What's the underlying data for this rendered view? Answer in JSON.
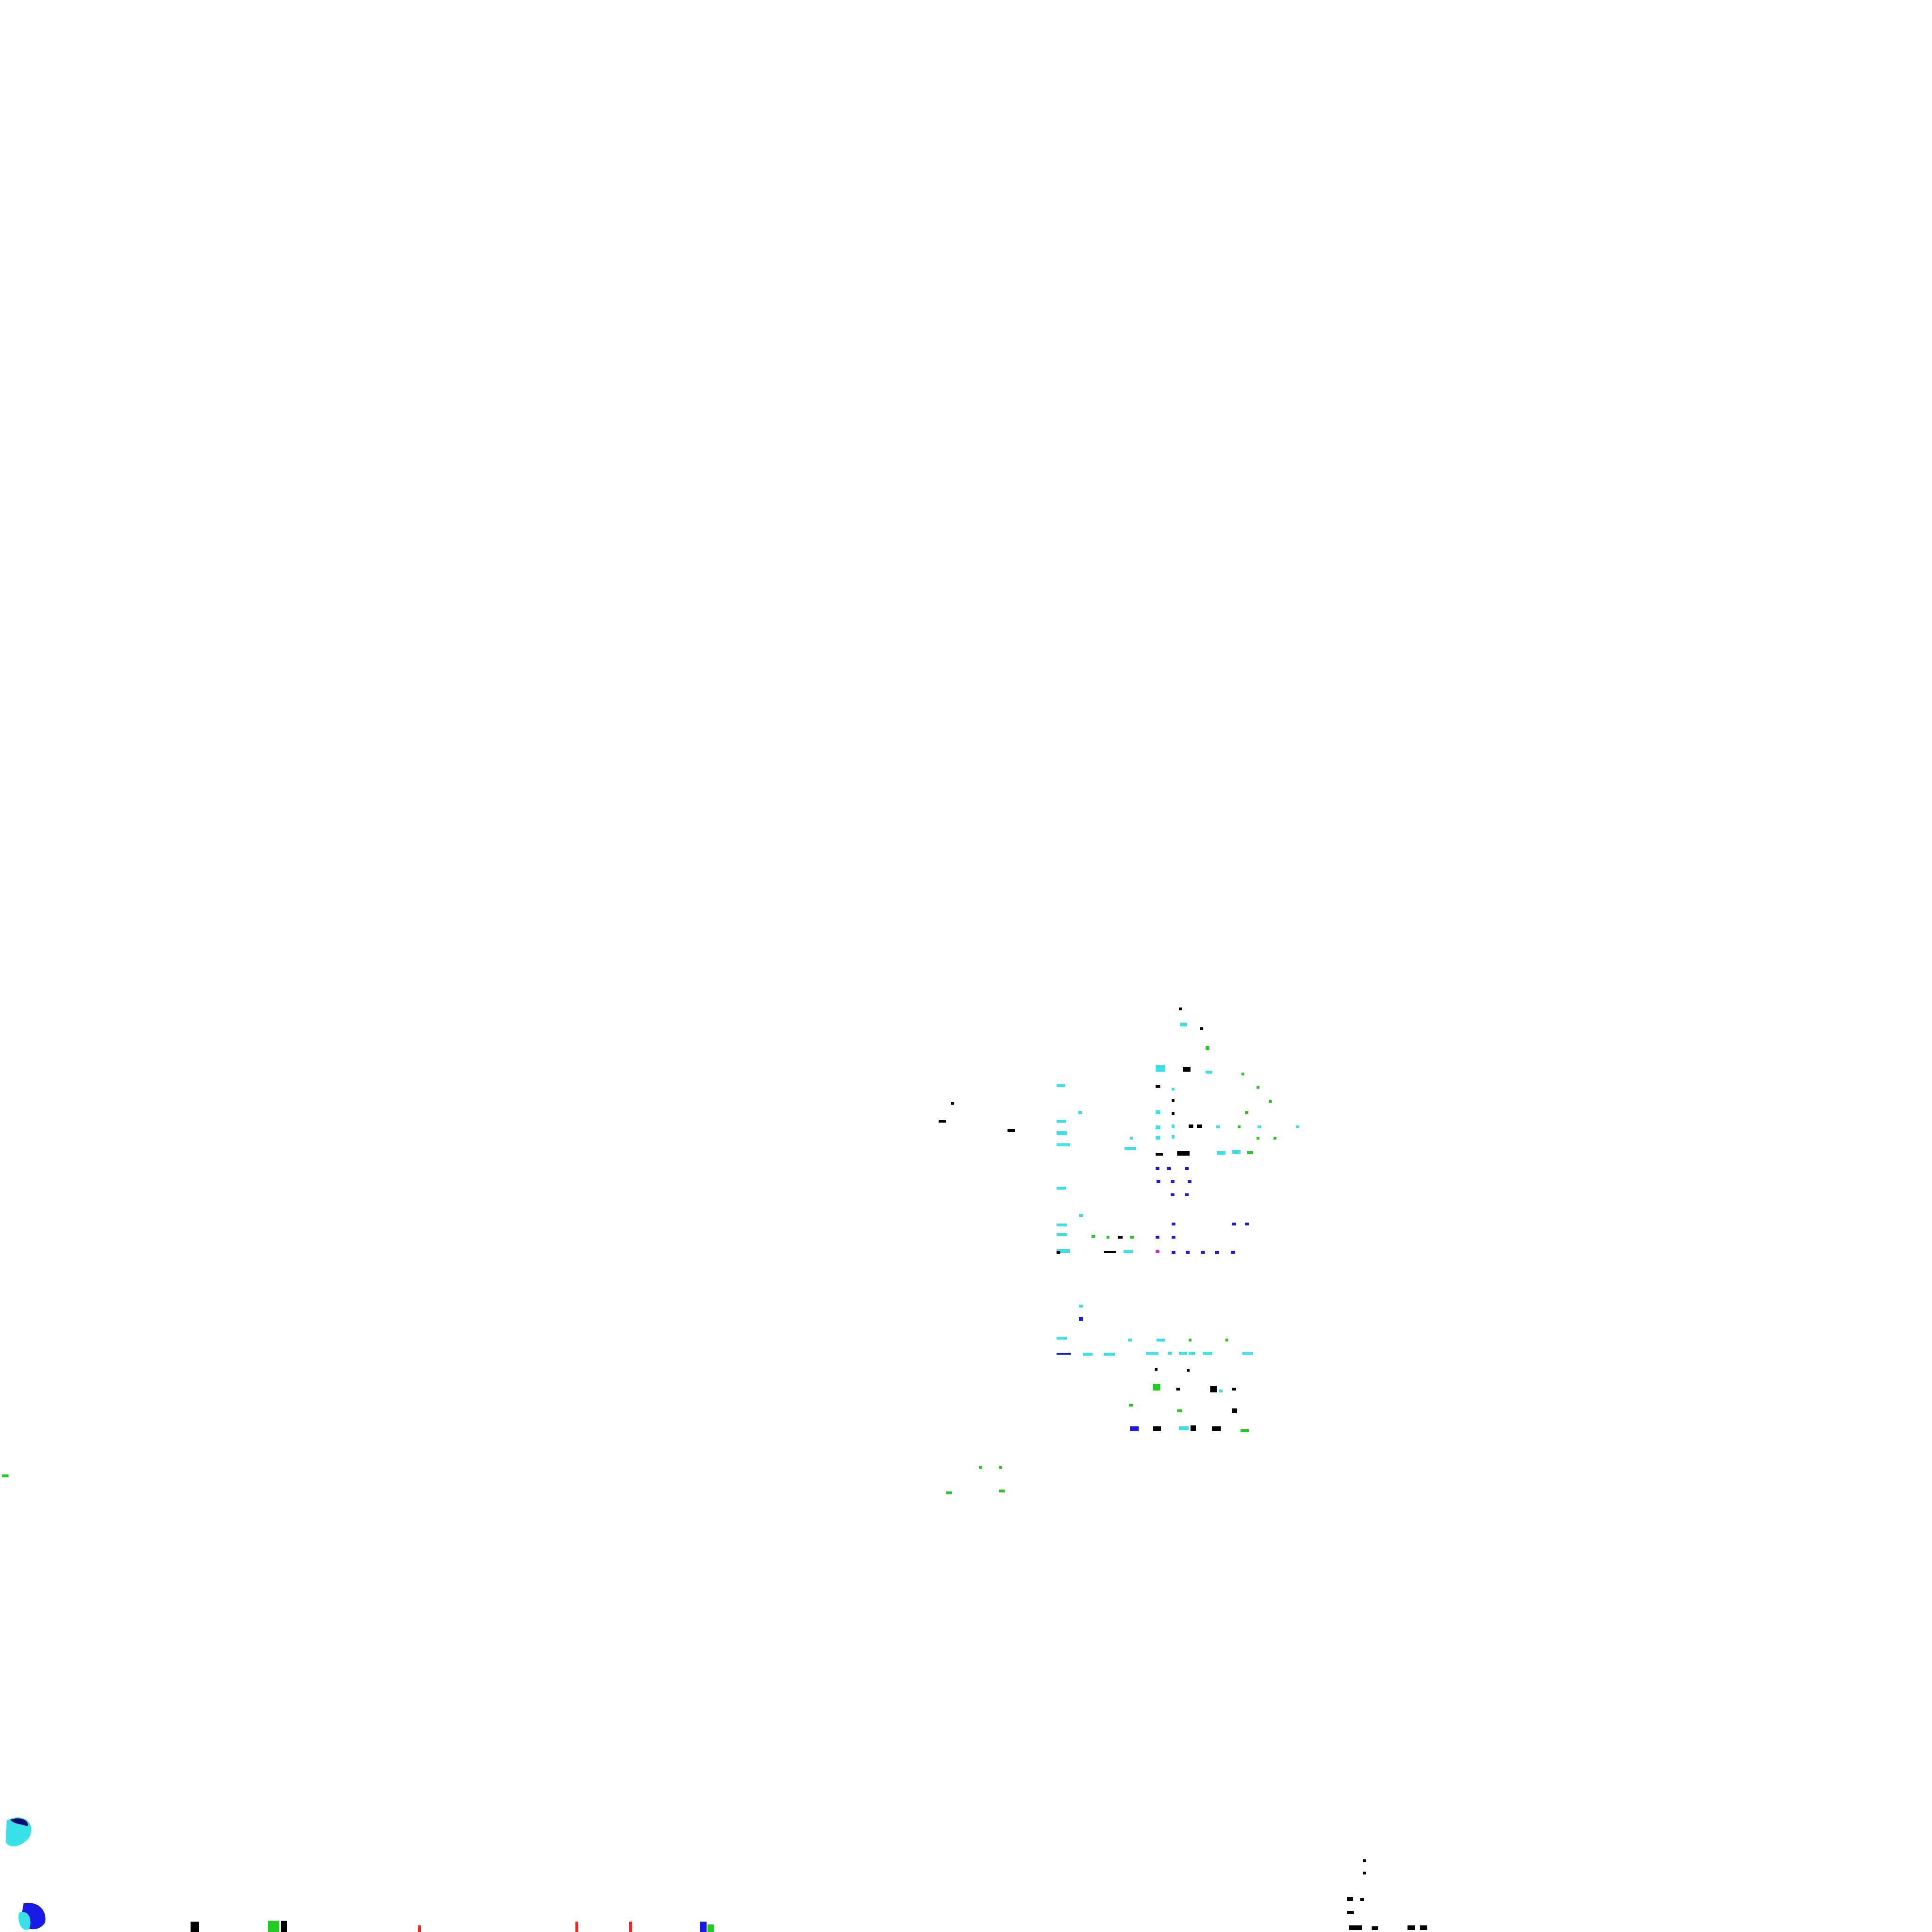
{
  "background_color": "#ffffff",
  "palette": {
    "cyan": "#38e0e8",
    "blue": "#1a1ae6",
    "green": "#22cc22",
    "black": "#000000",
    "red": "#ff2020",
    "magenta": "#e020e0",
    "navy": "#0a0a70"
  }
}
